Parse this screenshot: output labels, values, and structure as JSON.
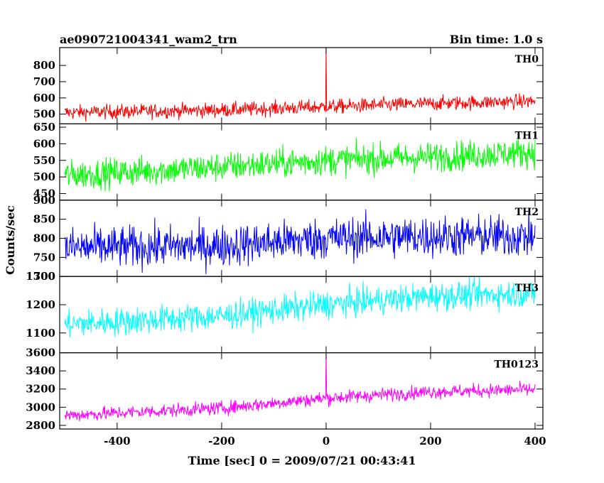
{
  "chart_data": {
    "type": "line",
    "title": "ae090721004341_wam2_trn",
    "subtitle": "Bin time: 1.0 s",
    "xlabel": "Time [sec] 0 = 2009/07/21 00:43:41",
    "ylabel": "Counts/sec",
    "xlim": [
      -510,
      415
    ],
    "xticks": [
      -400,
      -200,
      0,
      200,
      400
    ],
    "grid": false,
    "bin_time_s": 1.0,
    "panels": [
      {
        "name": "TH0",
        "color": "#ff0000",
        "ylim": [
          440,
          910
        ],
        "yticks": [
          500,
          600,
          700,
          800
        ],
        "trend": [
          [
            -500,
            510
          ],
          [
            -200,
            525
          ],
          [
            0,
            545
          ],
          [
            200,
            565
          ],
          [
            400,
            580
          ]
        ],
        "spread": 45,
        "spike": {
          "x": 0,
          "y": 910
        }
      },
      {
        "name": "TH1",
        "color": "#00ff00",
        "ylim": [
          430,
          660
        ],
        "yticks": [
          450,
          500,
          550,
          600,
          650
        ],
        "trend": [
          [
            -500,
            505
          ],
          [
            -200,
            530
          ],
          [
            0,
            550
          ],
          [
            200,
            560
          ],
          [
            400,
            575
          ]
        ],
        "spread": 45
      },
      {
        "name": "TH2",
        "color": "#0000ff",
        "ylim": [
          700,
          900
        ],
        "yticks": [
          700,
          750,
          800,
          850,
          900
        ],
        "trend": [
          [
            -500,
            775
          ],
          [
            -200,
            780
          ],
          [
            0,
            800
          ],
          [
            200,
            805
          ],
          [
            400,
            805
          ]
        ],
        "spread": 55
      },
      {
        "name": "TH3",
        "color": "#00ffff",
        "ylim": [
          1030,
          1300
        ],
        "yticks": [
          1100,
          1200,
          1300
        ],
        "trend": [
          [
            -500,
            1130
          ],
          [
            -200,
            1160
          ],
          [
            0,
            1200
          ],
          [
            200,
            1230
          ],
          [
            400,
            1240
          ]
        ],
        "spread": 50
      },
      {
        "name": "TH0123",
        "color": "#ff00ff",
        "ylim": [
          2760,
          3600
        ],
        "yticks": [
          2800,
          3000,
          3200,
          3400,
          3600
        ],
        "trend": [
          [
            -500,
            2910
          ],
          [
            -200,
            2990
          ],
          [
            0,
            3100
          ],
          [
            200,
            3170
          ],
          [
            400,
            3195
          ]
        ],
        "spread": 75,
        "spike": {
          "x": 0,
          "y": 3600
        }
      }
    ]
  }
}
